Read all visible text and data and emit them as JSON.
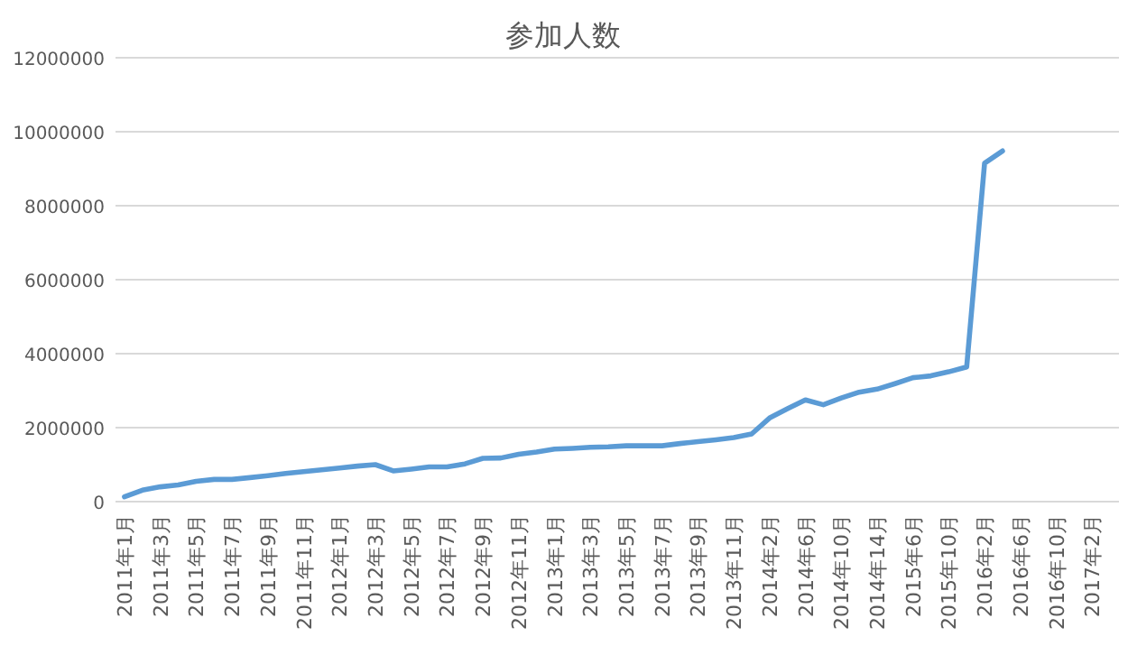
{
  "chart_data": {
    "type": "line",
    "title": "参加人数",
    "categories": [
      "2011年1月",
      null,
      "2011年3月",
      null,
      "2011年5月",
      null,
      "2011年7月",
      null,
      "2011年9月",
      null,
      "2011年11月",
      null,
      "2012年1月",
      null,
      "2012年3月",
      null,
      "2012年5月",
      null,
      "2012年7月",
      null,
      "2012年9月",
      null,
      "2012年11月",
      null,
      "2013年1月",
      null,
      "2013年3月",
      null,
      "2013年5月",
      null,
      "2013年7月",
      null,
      "2013年9月",
      null,
      "2013年11月",
      null,
      "2014年2月",
      null,
      "2014年6月",
      null,
      "2014年10月",
      null,
      "2014年14月",
      null,
      "2015年6月",
      null,
      "2015年10月",
      null,
      "2016年2月",
      null,
      "2016年6月",
      null,
      "2016年10月",
      null,
      "2017年2月",
      null
    ],
    "series": [
      {
        "color": "#5b9bd5",
        "values": [
          130000,
          310000,
          400000,
          450000,
          550000,
          600000,
          600000,
          650000,
          700000,
          760000,
          810000,
          860000,
          910000,
          960000,
          1000000,
          830000,
          880000,
          940000,
          940000,
          1020000,
          1170000,
          1180000,
          1280000,
          1340000,
          1420000,
          1440000,
          1470000,
          1480000,
          1510000,
          1510000,
          1510000,
          1570000,
          1620000,
          1670000,
          1730000,
          1830000,
          2260000,
          2510000,
          2750000,
          2620000,
          2800000,
          2960000,
          3040000,
          3190000,
          3350000,
          3400000,
          3510000,
          3640000,
          9150000,
          9480000,
          null,
          null,
          null,
          null,
          null,
          null
        ]
      }
    ],
    "ylim": [
      0,
      12000000
    ],
    "yticks": [
      0,
      2000000,
      4000000,
      6000000,
      8000000,
      10000000,
      12000000
    ],
    "grid": "y",
    "marker": "none",
    "line_style": "solid"
  }
}
